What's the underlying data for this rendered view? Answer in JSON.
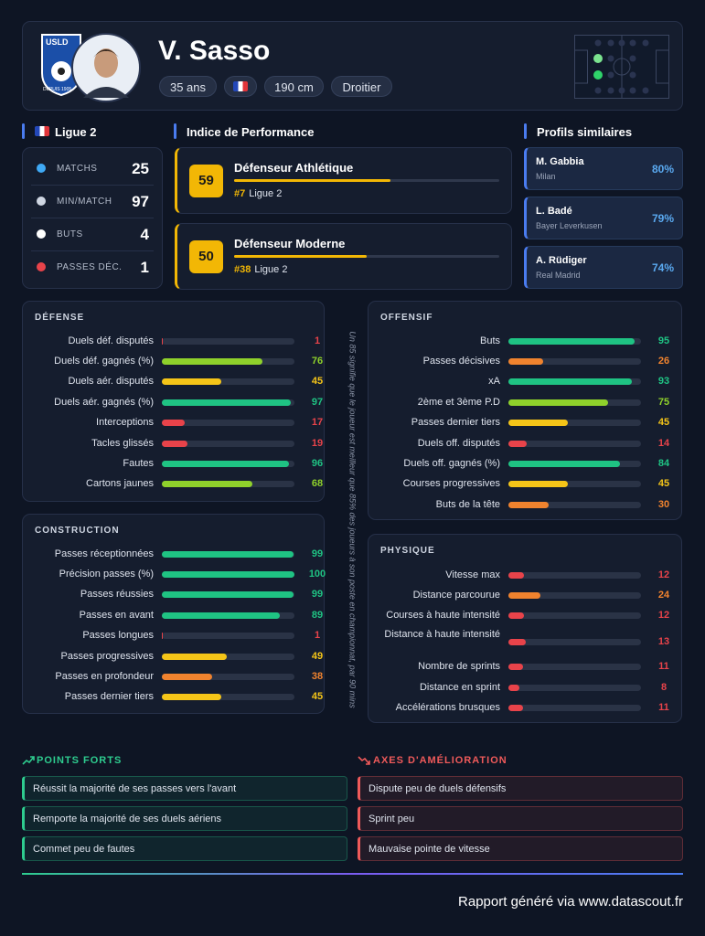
{
  "header": {
    "logo": {
      "text": "USLD",
      "since": "DEPUIS 1905"
    },
    "name": "V. Sasso",
    "tags": [
      "35 ans",
      "190 cm",
      "Droitier"
    ]
  },
  "league": {
    "title": "Ligue 2",
    "stats": [
      {
        "label": "MATCHS",
        "value": 25
      },
      {
        "label": "MIN/MATCH",
        "value": 97
      },
      {
        "label": "BUTS",
        "value": 4
      },
      {
        "label": "PASSES DÉC.",
        "value": 1
      }
    ]
  },
  "performance": {
    "title": "Indice de Performance",
    "items": [
      {
        "score": 59,
        "label": "Défenseur Athlétique",
        "rank": "#7",
        "league": "Ligue 2"
      },
      {
        "score": 50,
        "label": "Défenseur Moderne",
        "rank": "#38",
        "league": "Ligue 2"
      }
    ]
  },
  "similar": {
    "title": "Profils similaires",
    "items": [
      {
        "name": "M. Gabbia",
        "club": "Milan",
        "similarity": "80%"
      },
      {
        "name": "L. Badé",
        "club": "Bayer Leverkusen",
        "similarity": "79%"
      },
      {
        "name": "A. Rüdiger",
        "club": "Real Madrid",
        "similarity": "74%"
      }
    ]
  },
  "panels": [
    {
      "title": "DÉFENSE",
      "metrics": [
        {
          "label": "Duels déf. disputés",
          "value": 1
        },
        {
          "label": "Duels déf. gagnés (%)",
          "value": 76
        },
        {
          "label": "Duels aér. disputés",
          "value": 45
        },
        {
          "label": "Duels aér. gagnés (%)",
          "value": 97
        },
        {
          "label": "Interceptions",
          "value": 17
        },
        {
          "label": "Tacles glissés",
          "value": 19
        },
        {
          "label": "Fautes",
          "value": 96
        },
        {
          "label": "Cartons jaunes",
          "value": 68
        }
      ]
    },
    {
      "title": "CONSTRUCTION",
      "metrics": [
        {
          "label": "Passes réceptionnées",
          "value": 99
        },
        {
          "label": "Précision passes (%)",
          "value": 100
        },
        {
          "label": "Passes réussies",
          "value": 99
        },
        {
          "label": "Passes en avant",
          "value": 89
        },
        {
          "label": "Passes longues",
          "value": 1
        },
        {
          "label": "Passes progressives",
          "value": 49
        },
        {
          "label": "Passes en profondeur",
          "value": 38
        },
        {
          "label": "Passes dernier tiers",
          "value": 45
        }
      ]
    },
    {
      "title": "OFFENSIF",
      "metrics": [
        {
          "label": "Buts",
          "value": 95
        },
        {
          "label": "Passes décisives",
          "value": 26
        },
        {
          "label": "xA",
          "value": 93
        },
        {
          "label": "2ème et 3ème P.D",
          "value": 75
        },
        {
          "label": "Passes dernier tiers",
          "value": 45
        },
        {
          "label": "Duels off. disputés",
          "value": 14
        },
        {
          "label": "Duels off. gagnés (%)",
          "value": 84
        },
        {
          "label": "Courses progressives",
          "value": 45
        },
        {
          "label": "Buts de la tête",
          "value": 30
        }
      ]
    },
    {
      "title": "PHYSIQUE",
      "metrics": [
        {
          "label": "Vitesse max",
          "value": 12
        },
        {
          "label": "Distance parcourue",
          "value": 24
        },
        {
          "label": "Courses à haute intensité",
          "value": 12
        },
        {
          "label": "Distance à haute intensité",
          "value": 13
        },
        {
          "label": "Nombre de sprints",
          "value": 11
        },
        {
          "label": "Distance en sprint",
          "value": 8
        },
        {
          "label": "Accélérations brusques",
          "value": 11
        }
      ]
    }
  ],
  "note": "Un 85 signifie que le joueur est meilleur que 85% des joueurs à son poste en championnat, par 90 mins",
  "strengths": {
    "title": "POINTS FORTS",
    "items": [
      "Réussit la majorité de ses passes vers l'avant",
      "Remporte la majorité de ses duels aériens",
      "Commet peu de fautes"
    ]
  },
  "improvements": {
    "title": "AXES D'AMÉLIORATION",
    "items": [
      "Dispute peu de duels défensifs",
      "Sprint peu",
      "Mauvaise pointe de vitesse"
    ]
  },
  "footer": "Rapport généré via www.datascout.fr"
}
